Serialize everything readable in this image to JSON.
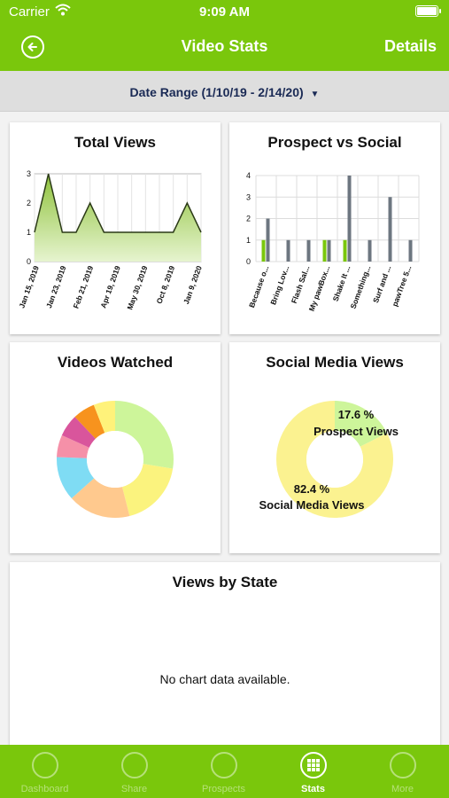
{
  "status_bar": {
    "carrier": "Carrier",
    "time": "9:09 AM"
  },
  "nav": {
    "title": "Video Stats",
    "details_label": "Details"
  },
  "date_range": {
    "label": "Date Range (1/10/19 - 2/14/20)"
  },
  "total_views": {
    "title": "Total Views",
    "chart_data": {
      "type": "area",
      "title": "Total Views",
      "x_ticks": [
        "Jan 15, 2019",
        "Jan 23, 2019",
        "Feb 21, 2019",
        "Apr 19, 2019",
        "May 30, 2019",
        "Oct 8, 2019",
        "Jan 9, 2020"
      ],
      "values": [
        1,
        3,
        1,
        1,
        2,
        1,
        1,
        1,
        1,
        1,
        1,
        2,
        1
      ],
      "ylim": [
        0,
        3
      ],
      "y_ticks": [
        "0",
        "1",
        "2",
        "3"
      ],
      "color": "#6a9b1a"
    }
  },
  "prospect_vs_social": {
    "title": "Prospect vs Social",
    "chart_data": {
      "type": "bar",
      "title": "Prospect vs Social",
      "categories": [
        "Because o...",
        "Bring Lov...",
        "Flash Sal...",
        "My pawBox...",
        "Shake It ...",
        "Something...",
        "Surf and ...",
        "pawTree 5..."
      ],
      "series": [
        {
          "values": [
            1,
            0,
            0,
            1,
            1,
            0,
            0,
            0
          ],
          "color": "#7ac70c"
        },
        {
          "values": [
            2,
            1,
            1,
            1,
            4,
            1,
            3,
            1
          ],
          "color": "#6d7680"
        }
      ],
      "ylim": [
        0,
        4
      ],
      "y_ticks": [
        "0",
        "1",
        "2",
        "3",
        "4"
      ]
    }
  },
  "videos_watched": {
    "title": "Videos Watched",
    "chart_data": {
      "type": "pie",
      "title": "Videos Watched",
      "values": [
        27,
        18,
        17,
        12,
        6,
        6,
        6,
        6
      ],
      "colors": [
        "#cdf59a",
        "#fbf37e",
        "#ffc98e",
        "#7fdcf4",
        "#f590a8",
        "#d9559c",
        "#f7931e",
        "#fff27a"
      ]
    }
  },
  "social_media_views": {
    "title": "Social Media Views",
    "chart_data": {
      "type": "pie",
      "title": "Social Media Views",
      "slices": [
        {
          "label": "Prospect Views",
          "percent_label": "17.6 %",
          "value": 17.6,
          "color": "#cdf59a"
        },
        {
          "label": "Social Media Views",
          "percent_label": "82.4 %",
          "value": 82.4,
          "color": "#fbf290"
        }
      ]
    }
  },
  "views_by_state": {
    "title": "Views by State",
    "empty_text": "No chart data available."
  },
  "tabs": [
    {
      "label": "Dashboard",
      "active": false
    },
    {
      "label": "Share",
      "active": false
    },
    {
      "label": "Prospects",
      "active": false
    },
    {
      "label": "Stats",
      "active": true
    },
    {
      "label": "More",
      "active": false
    }
  ]
}
